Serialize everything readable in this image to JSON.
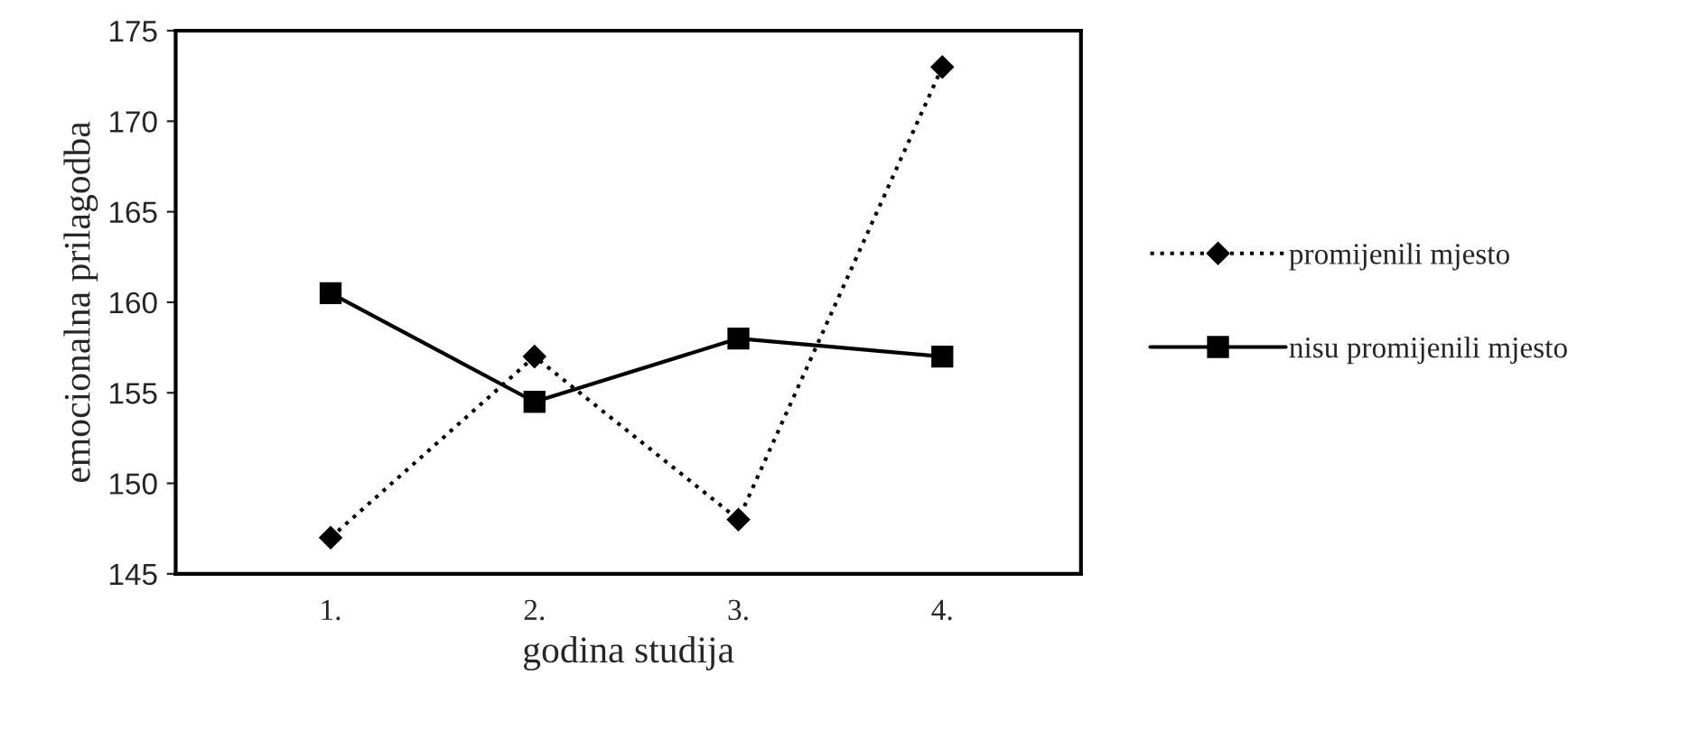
{
  "chart_data": {
    "type": "line",
    "xlabel": "godina studija",
    "ylabel": "emocionalna prilagodba",
    "categories": [
      "1.",
      "2.",
      "3.",
      "4."
    ],
    "series": [
      {
        "name": "promijenili mjesto",
        "color": "#000000",
        "values": [
          147,
          157,
          148,
          173
        ],
        "marker": "diamond",
        "line_style": "dotted"
      },
      {
        "name": "nisu promijenili mjesto",
        "color": "#000000",
        "values": [
          160.5,
          154.5,
          158,
          157
        ],
        "marker": "square",
        "line_style": "solid"
      }
    ],
    "ylim": [
      145,
      175
    ],
    "yticks": [
      145,
      150,
      155,
      160,
      165,
      170,
      175
    ],
    "grid": false,
    "legend": "right"
  }
}
